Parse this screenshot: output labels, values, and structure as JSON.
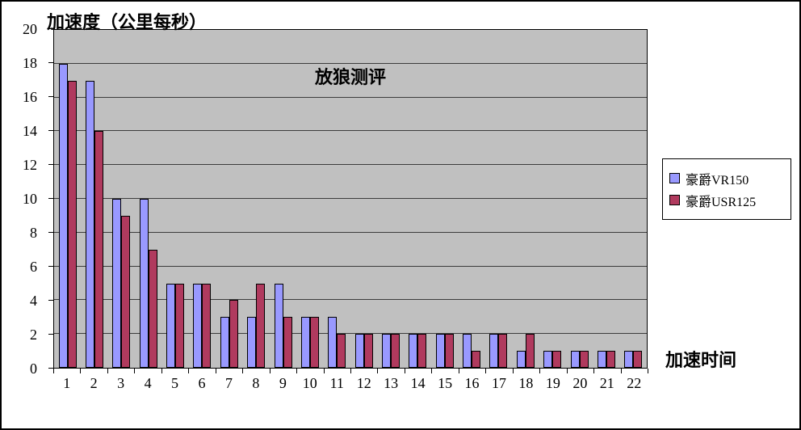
{
  "chart_data": {
    "type": "bar",
    "title": "放狼测评",
    "y_axis_title": "加速度（公里每秒）",
    "x_axis_title": "加速时间",
    "categories": [
      "1",
      "2",
      "3",
      "4",
      "5",
      "6",
      "7",
      "8",
      "9",
      "10",
      "11",
      "12",
      "13",
      "14",
      "15",
      "16",
      "17",
      "18",
      "19",
      "20",
      "21",
      "22"
    ],
    "series": [
      {
        "name": "豪爵VR150",
        "color": "#9999FF",
        "values": [
          18,
          17,
          10,
          10,
          5,
          5,
          3,
          3,
          5,
          3,
          3,
          2,
          2,
          2,
          2,
          2,
          2,
          1,
          1,
          1,
          1,
          1
        ]
      },
      {
        "name": "豪爵USR125",
        "color": "#B03A5E",
        "values": [
          17,
          14,
          9,
          7,
          5,
          5,
          4,
          5,
          3,
          3,
          2,
          2,
          2,
          2,
          2,
          1,
          2,
          2,
          1,
          1,
          1,
          1
        ]
      }
    ],
    "ylim": [
      0,
      20
    ],
    "ytick_step": 2,
    "plot_bg": "#C0C0C0",
    "grid": true,
    "legend_position": "right"
  }
}
